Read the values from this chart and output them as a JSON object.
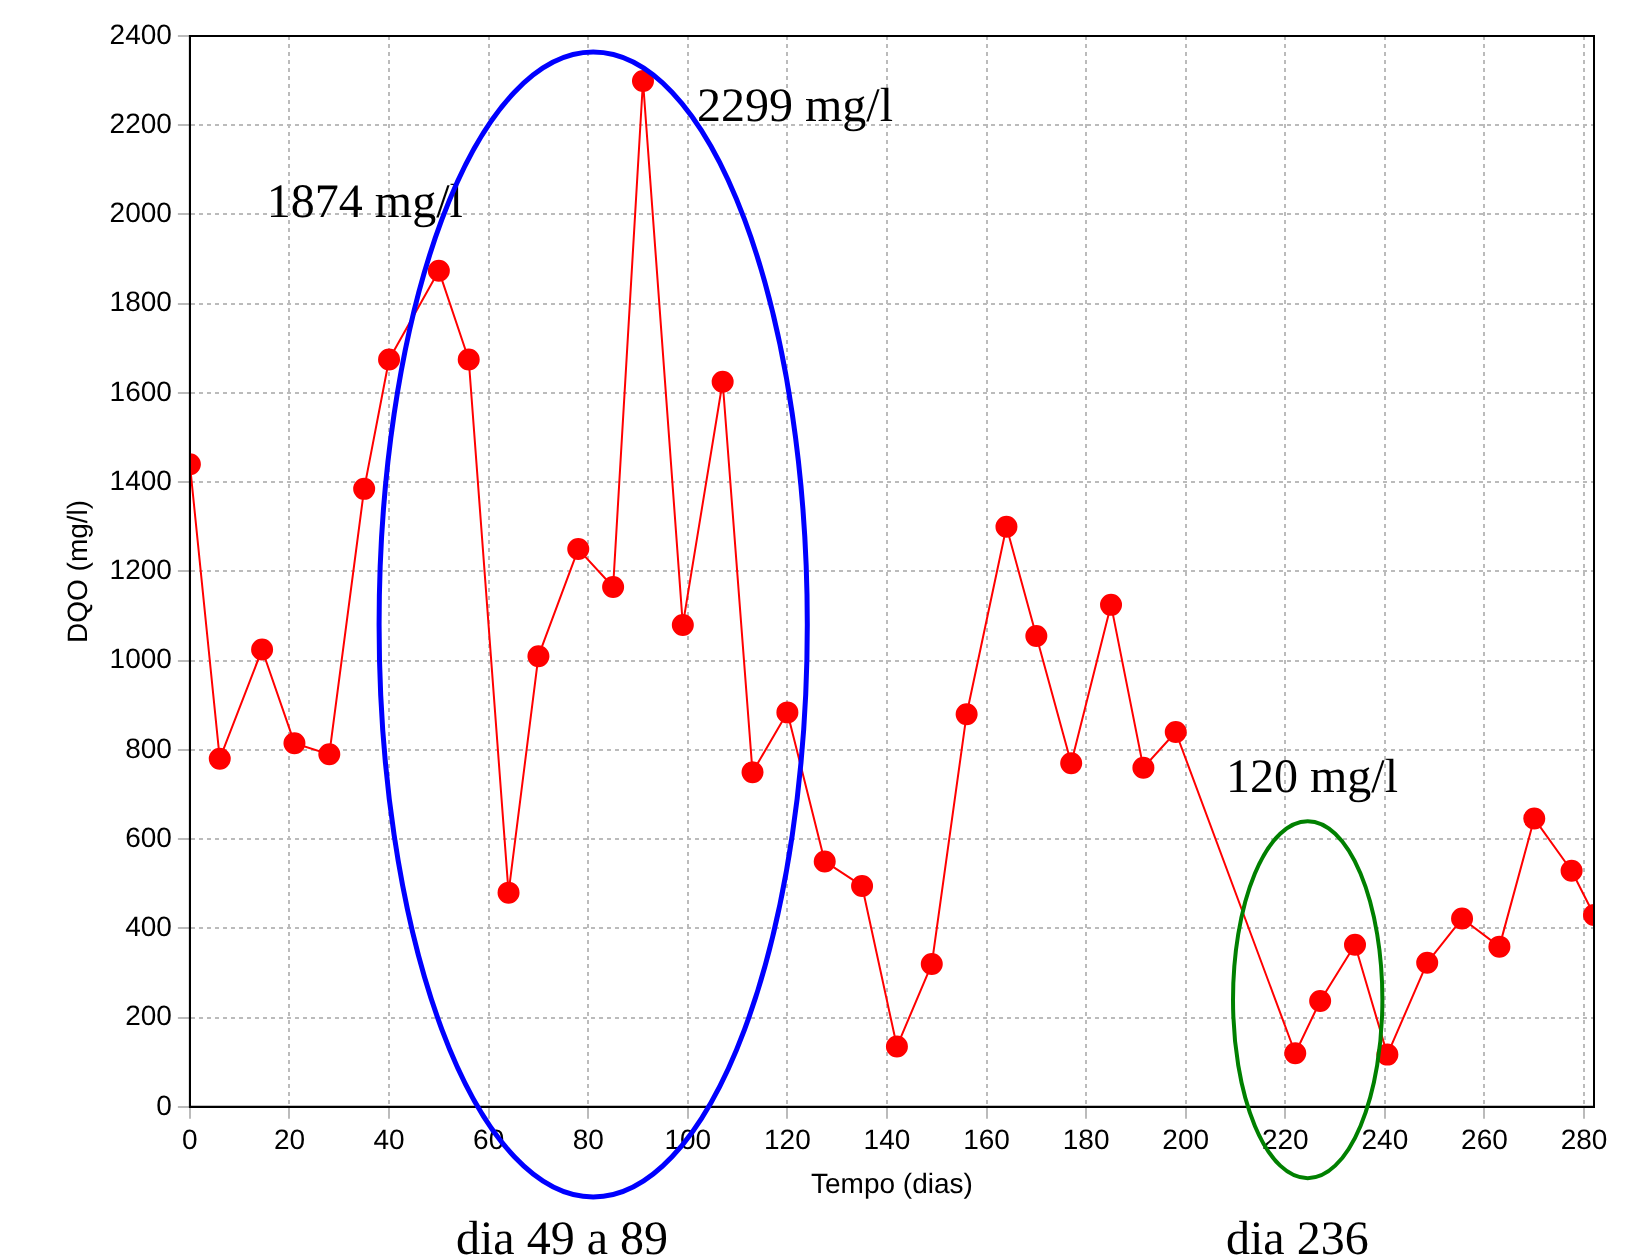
{
  "chart_data": {
    "type": "line",
    "xlabel": "Tempo (dias)",
    "ylabel": "DQO (mg/l)",
    "x": [
      0,
      6,
      14.5,
      21,
      28,
      35,
      40,
      50,
      56,
      64,
      70,
      78,
      85,
      91,
      99,
      107,
      113,
      120,
      127.5,
      135,
      142,
      149,
      156,
      164,
      170,
      177,
      185,
      191.5,
      198,
      222,
      227,
      234,
      240.5,
      248.5,
      255.5,
      263,
      270,
      277.5,
      282
    ],
    "series": [
      {
        "color": "#ff0000",
        "values": [
          1440,
          780,
          1025,
          815,
          790,
          1385,
          1675,
          1874,
          1675,
          480,
          1010,
          1250,
          1165,
          2299,
          1080,
          1625,
          750,
          884,
          550,
          495,
          135,
          320,
          880,
          1300,
          1055,
          770,
          1125,
          760,
          840,
          120,
          237,
          363,
          117,
          323,
          422,
          359,
          646,
          529,
          430
        ]
      }
    ],
    "xlim": [
      0,
      282
    ],
    "xticks": [
      0,
      20,
      40,
      60,
      80,
      100,
      120,
      140,
      160,
      180,
      200,
      220,
      240,
      260,
      280
    ],
    "ylim": [
      0,
      2400
    ],
    "yticks": [
      0,
      200,
      400,
      600,
      800,
      1000,
      1200,
      1400,
      1600,
      1800,
      2000,
      2200,
      2400
    ],
    "grid": true,
    "legend": false,
    "marker": "circle",
    "line_style": "solid",
    "annotations": [
      {
        "text": "1874 mg/l",
        "x": 50,
        "y": 1874
      },
      {
        "text": "2299 mg/l",
        "x": 91,
        "y": 2299
      },
      "120 mg/l",
      "dia 49 a 89",
      "dia 236"
    ]
  }
}
